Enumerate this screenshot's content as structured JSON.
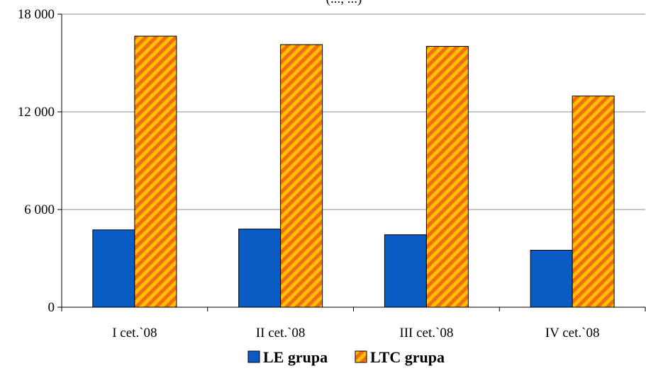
{
  "chart_data": {
    "type": "bar",
    "title_fragment": "(..., ...)",
    "categories": [
      "I cet.`08",
      "II cet.`08",
      "III cet.`08",
      "IV cet.`08"
    ],
    "series": [
      {
        "name": "LE grupa",
        "values": [
          4750,
          4800,
          4450,
          3500
        ],
        "color": "#0a5cc4"
      },
      {
        "name": "LTC grupa",
        "values": [
          16650,
          16130,
          16020,
          12970
        ],
        "color": "#ffc000",
        "stripe_color": "#f26c12"
      }
    ],
    "ylim": [
      0,
      18000
    ],
    "yticks": [
      0,
      6000,
      12000,
      18000
    ],
    "ytick_labels": [
      "0",
      "6 000",
      "12 000",
      "18 000"
    ],
    "grid": true,
    "legend_position": "bottom"
  }
}
